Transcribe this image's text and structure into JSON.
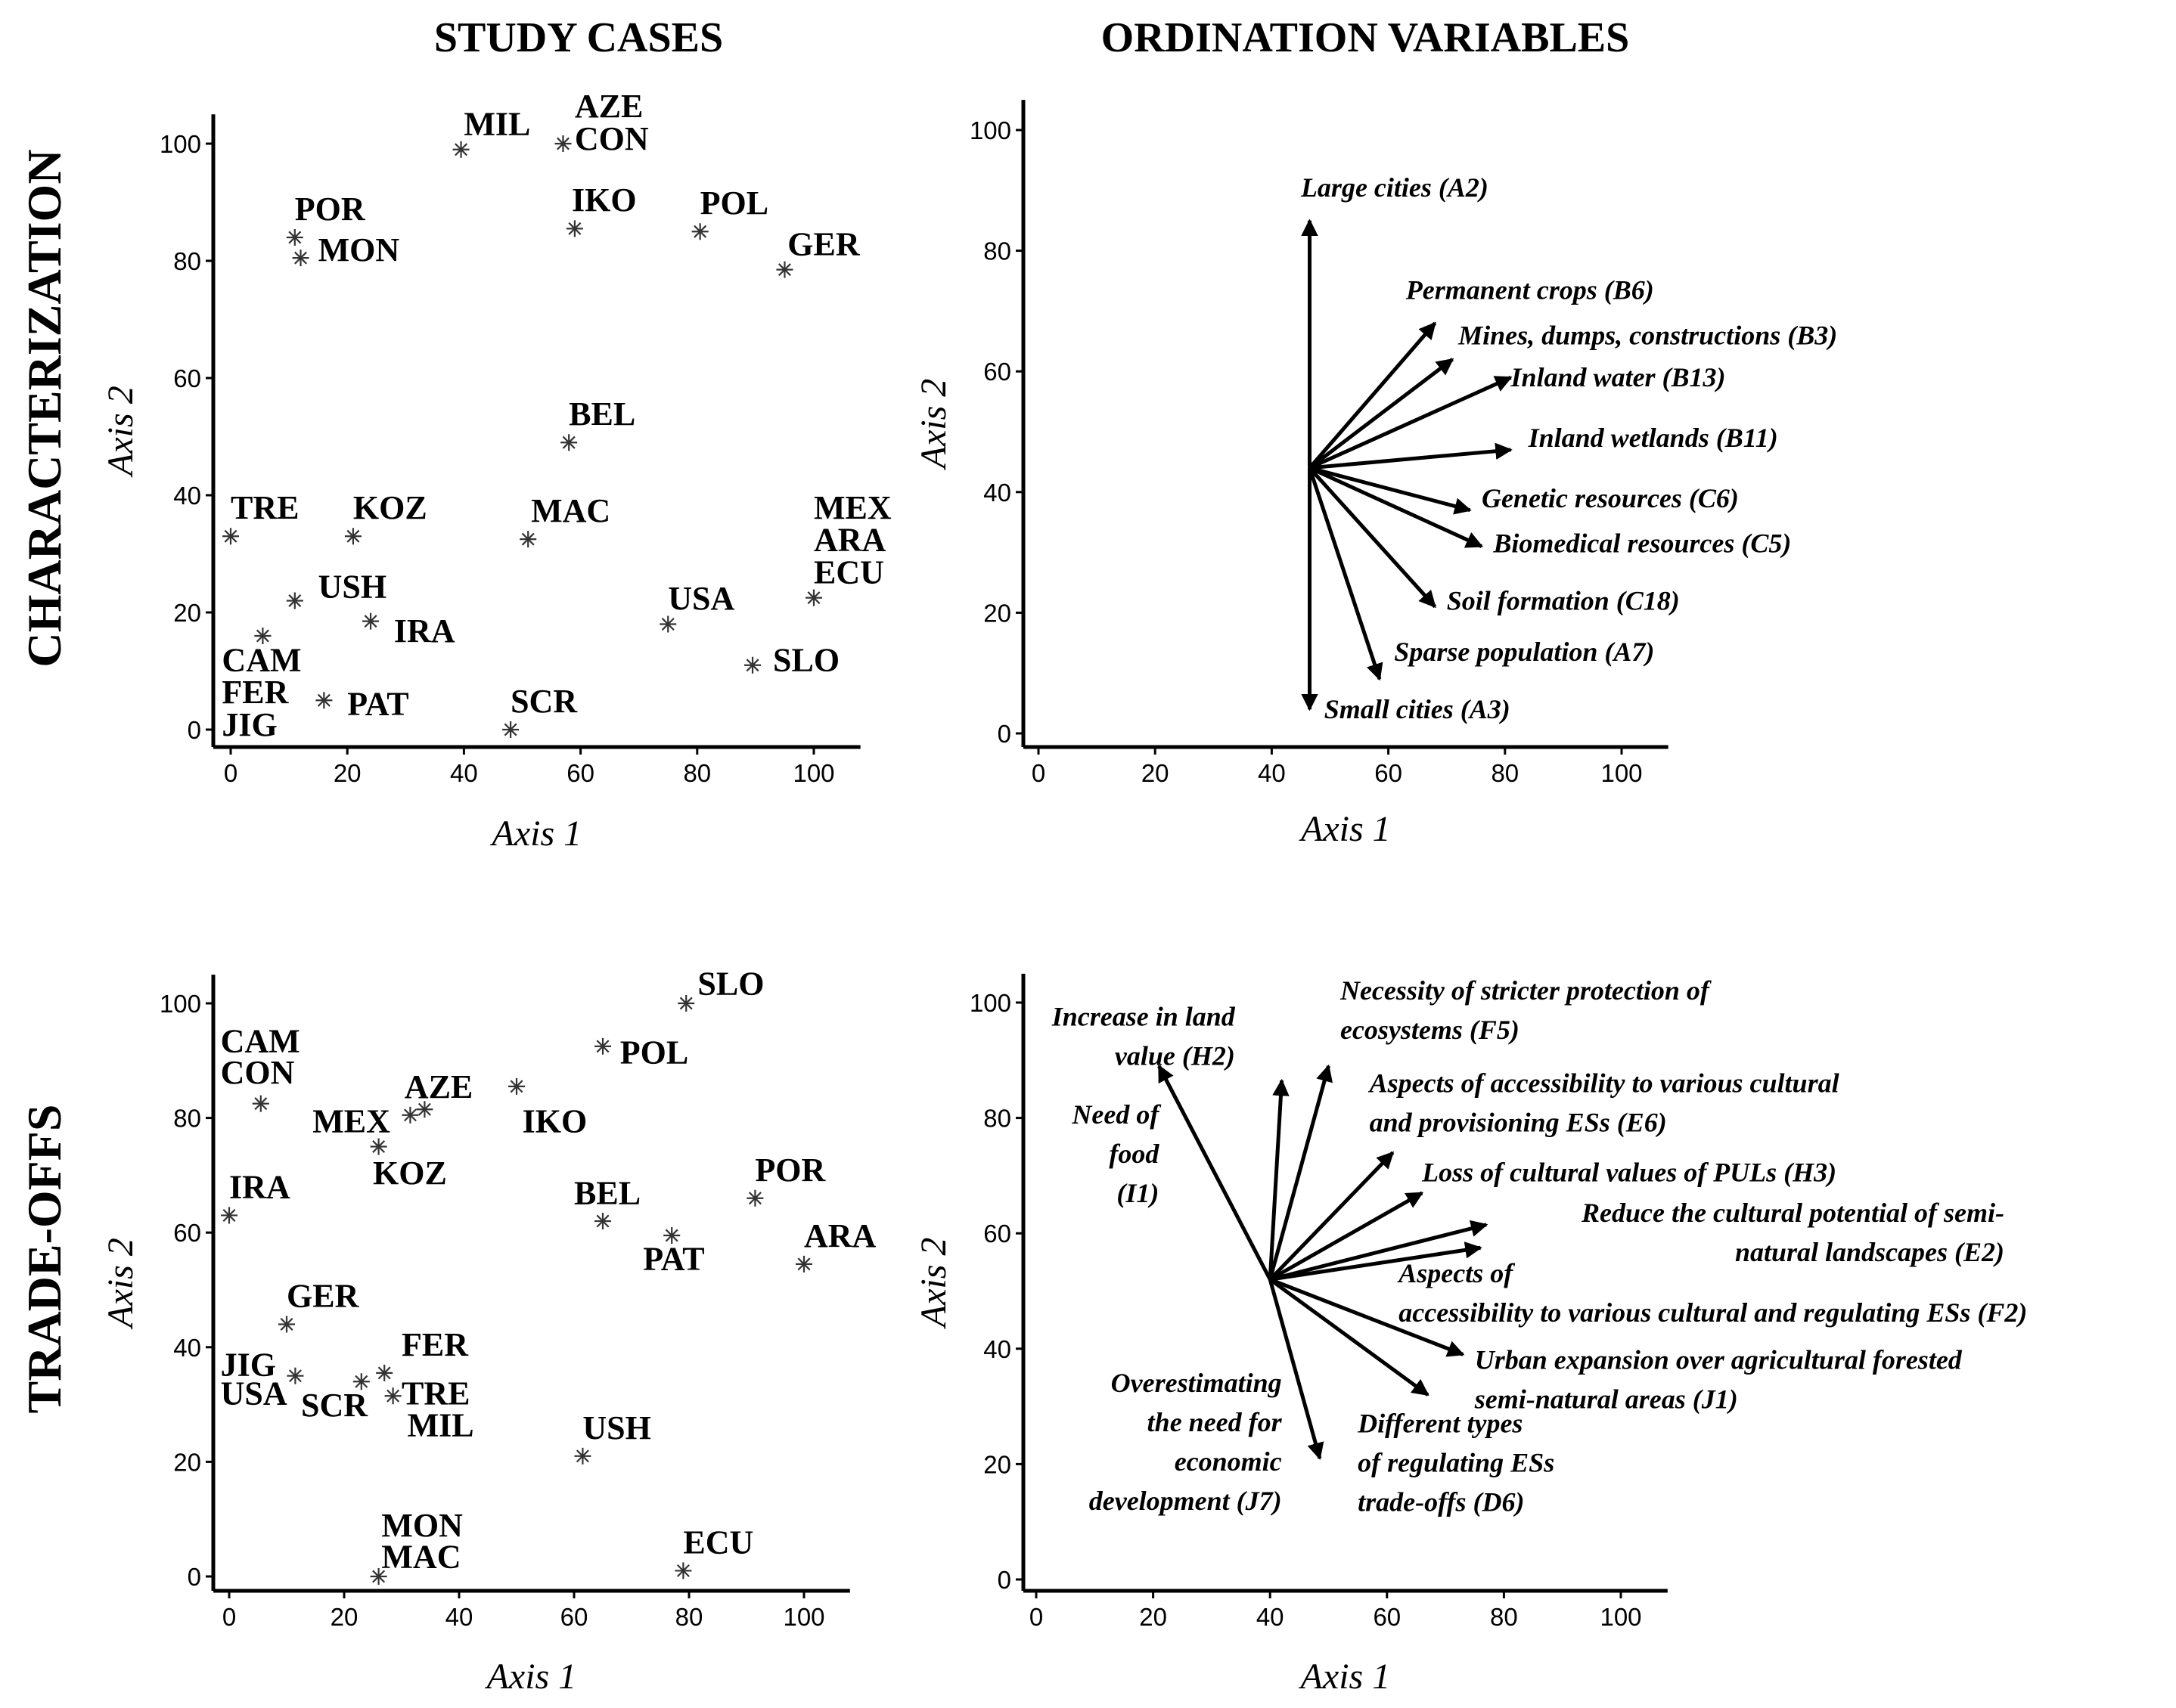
{
  "column_titles": [
    "STUDY CASES",
    "ORDINATION VARIABLES"
  ],
  "row_titles": [
    "CHARACTERIZATION",
    "TRADE-OFFS"
  ],
  "chart_data": [
    {
      "type": "scatter",
      "id": "char_cases",
      "row": "CHARACTERIZATION",
      "column": "STUDY CASES",
      "xlabel": "Axis 1",
      "ylabel": "Axis 2",
      "xlim": [
        -2,
        108
      ],
      "ylim": [
        -2,
        105
      ],
      "xticks": [
        0,
        20,
        40,
        60,
        80,
        100
      ],
      "yticks": [
        0,
        20,
        40,
        60,
        80,
        100
      ],
      "points": [
        {
          "x": 39.5,
          "y": 99,
          "marker": true
        },
        {
          "x": 57,
          "y": 100,
          "marker": true
        },
        {
          "x": 59,
          "y": 85.5,
          "marker": true
        },
        {
          "x": 80.5,
          "y": 85,
          "marker": true
        },
        {
          "x": 11,
          "y": 84,
          "marker": true
        },
        {
          "x": 12,
          "y": 80.5,
          "marker": true
        },
        {
          "x": 95,
          "y": 78.5,
          "marker": true
        },
        {
          "x": 58,
          "y": 49,
          "marker": true
        },
        {
          "x": 0,
          "y": 33,
          "marker": true
        },
        {
          "x": 21,
          "y": 33,
          "marker": true
        },
        {
          "x": 51,
          "y": 32.5,
          "marker": true
        },
        {
          "x": 100,
          "y": 22.5,
          "marker": true
        },
        {
          "x": 11,
          "y": 22,
          "marker": true
        },
        {
          "x": 24,
          "y": 18.5,
          "marker": true
        },
        {
          "x": 75,
          "y": 18,
          "marker": true
        },
        {
          "x": 5.5,
          "y": 16,
          "marker": true
        },
        {
          "x": 89.5,
          "y": 11,
          "marker": true
        },
        {
          "x": 16,
          "y": 5,
          "marker": true
        },
        {
          "x": 48,
          "y": 0,
          "marker": true
        }
      ],
      "labels": [
        {
          "text": "MIL",
          "x": 40,
          "y": 101.5
        },
        {
          "text": "AZE",
          "x": 59,
          "y": 104.5
        },
        {
          "text": "CON",
          "x": 59,
          "y": 99
        },
        {
          "text": "IKO",
          "x": 58.5,
          "y": 88.5
        },
        {
          "text": "POL",
          "x": 80.5,
          "y": 88
        },
        {
          "text": "POR",
          "x": 11,
          "y": 87
        },
        {
          "text": "MON",
          "x": 15,
          "y": 80
        },
        {
          "text": "GER",
          "x": 95.5,
          "y": 81
        },
        {
          "text": "BEL",
          "x": 58,
          "y": 52
        },
        {
          "text": "TRE",
          "x": 0,
          "y": 36
        },
        {
          "text": "KOZ",
          "x": 21,
          "y": 36
        },
        {
          "text": "MAC",
          "x": 51.5,
          "y": 35.5
        },
        {
          "text": "MEX",
          "x": 100,
          "y": 36
        },
        {
          "text": "ARA",
          "x": 100,
          "y": 30.5
        },
        {
          "text": "ECU",
          "x": 100,
          "y": 25
        },
        {
          "text": "USH",
          "x": 15,
          "y": 22.5
        },
        {
          "text": "IRA",
          "x": 28,
          "y": 15
        },
        {
          "text": "USA",
          "x": 75,
          "y": 20.5
        },
        {
          "text": "CAM",
          "x": -1.5,
          "y": 10
        },
        {
          "text": "SLO",
          "x": 93,
          "y": 10
        },
        {
          "text": "FER",
          "x": -1.5,
          "y": 4.5
        },
        {
          "text": "PAT",
          "x": 20,
          "y": 2.5
        },
        {
          "text": "SCR",
          "x": 48,
          "y": 3
        },
        {
          "text": "JIG",
          "x": -1.5,
          "y": -1
        }
      ]
    },
    {
      "type": "biplot",
      "id": "char_vars",
      "row": "CHARACTERIZATION",
      "column": "ORDINATION VARIABLES",
      "xlabel": "Axis 1",
      "ylabel": "Axis 2",
      "xlim": [
        -2,
        108
      ],
      "ylim": [
        -2,
        105
      ],
      "xticks": [
        0,
        20,
        40,
        60,
        80,
        100
      ],
      "yticks": [
        0,
        20,
        40,
        60,
        80,
        100
      ],
      "origin": [
        46.5,
        44
      ],
      "vectors": [
        {
          "to": [
            46.5,
            85
          ],
          "label": "Large cities (A2)",
          "lx": 45,
          "ly": 89
        },
        {
          "to": [
            68,
            68
          ],
          "label": "Permanent crops (B6)",
          "lx": 63,
          "ly": 72
        },
        {
          "to": [
            71,
            62
          ],
          "label": "Mines, dumps, constructions (B3)",
          "lx": 72,
          "ly": 64.5
        },
        {
          "to": [
            81,
            59
          ],
          "label": "Inland water (B13)",
          "lx": 81,
          "ly": 57.5
        },
        {
          "to": [
            81,
            47
          ],
          "label": "Inland wetlands (B11)",
          "lx": 84,
          "ly": 47.5
        },
        {
          "to": [
            74,
            37
          ],
          "label": "Genetic resources (C6)",
          "lx": 76,
          "ly": 37.5
        },
        {
          "to": [
            76,
            31
          ],
          "label": "Biomedical resources (C5)",
          "lx": 78,
          "ly": 30
        },
        {
          "to": [
            68,
            21
          ],
          "label": "Soil formation (C18)",
          "lx": 70,
          "ly": 20.5
        },
        {
          "to": [
            58.5,
            9
          ],
          "label": "Sparse population (A7)",
          "lx": 61,
          "ly": 12
        },
        {
          "to": [
            46.5,
            4
          ],
          "label": "Small cities (A3)",
          "lx": 49,
          "ly": 2.5
        }
      ]
    },
    {
      "type": "scatter",
      "id": "trade_cases",
      "row": "TRADE-OFFS",
      "column": "STUDY CASES",
      "xlabel": "Axis 1",
      "ylabel": "Axis 2",
      "xlim": [
        -2,
        108
      ],
      "ylim": [
        -2,
        105
      ],
      "xticks": [
        0,
        20,
        40,
        60,
        80,
        100
      ],
      "yticks": [
        0,
        20,
        40,
        60,
        80,
        100
      ],
      "points": [
        {
          "x": 79.5,
          "y": 100,
          "marker": true
        },
        {
          "x": 65,
          "y": 92.5,
          "marker": true
        },
        {
          "x": 50,
          "y": 85.5,
          "marker": true
        },
        {
          "x": 5.5,
          "y": 82.5,
          "marker": true
        },
        {
          "x": 31.5,
          "y": 80.5,
          "marker": true
        },
        {
          "x": 34,
          "y": 81.5,
          "marker": true
        },
        {
          "x": 26,
          "y": 75,
          "marker": true
        },
        {
          "x": 91.5,
          "y": 66,
          "marker": true
        },
        {
          "x": 0,
          "y": 63,
          "marker": true
        },
        {
          "x": 65,
          "y": 62,
          "marker": true
        },
        {
          "x": 77,
          "y": 59.5,
          "marker": true
        },
        {
          "x": 100,
          "y": 54.5,
          "marker": true
        },
        {
          "x": 10,
          "y": 44,
          "marker": true
        },
        {
          "x": 27,
          "y": 35.5,
          "marker": true
        },
        {
          "x": 11.5,
          "y": 35,
          "marker": true
        },
        {
          "x": 23,
          "y": 34,
          "marker": true
        },
        {
          "x": 28.5,
          "y": 31.5,
          "marker": true
        },
        {
          "x": 61.5,
          "y": 21,
          "marker": true
        },
        {
          "x": 79,
          "y": 1,
          "marker": true
        },
        {
          "x": 26,
          "y": 0,
          "marker": true
        }
      ],
      "labels": [
        {
          "text": "SLO",
          "x": 81.5,
          "y": 101.5
        },
        {
          "text": "POL",
          "x": 68,
          "y": 89.5
        },
        {
          "text": "CAM",
          "x": -1.5,
          "y": 91.5
        },
        {
          "text": "CON",
          "x": -1.5,
          "y": 86
        },
        {
          "text": "AZE",
          "x": 30.5,
          "y": 83.5
        },
        {
          "text": "MEX",
          "x": 14.5,
          "y": 77.5
        },
        {
          "text": "IKO",
          "x": 51,
          "y": 77.5
        },
        {
          "text": "KOZ",
          "x": 25,
          "y": 68.5
        },
        {
          "text": "POR",
          "x": 91.5,
          "y": 69
        },
        {
          "text": "IRA",
          "x": 0,
          "y": 66
        },
        {
          "text": "BEL",
          "x": 60,
          "y": 65
        },
        {
          "text": "ARA",
          "x": 100,
          "y": 57.5
        },
        {
          "text": "PAT",
          "x": 72,
          "y": 53.5
        },
        {
          "text": "GER",
          "x": 10,
          "y": 47
        },
        {
          "text": "FER",
          "x": 30,
          "y": 38.5
        },
        {
          "text": "JIG",
          "x": -1.5,
          "y": 35
        },
        {
          "text": "USA",
          "x": -1.5,
          "y": 30
        },
        {
          "text": "SCR",
          "x": 12.5,
          "y": 28
        },
        {
          "text": "TRE",
          "x": 30,
          "y": 30
        },
        {
          "text": "MIL",
          "x": 31,
          "y": 24.5
        },
        {
          "text": "USH",
          "x": 61.5,
          "y": 24
        },
        {
          "text": "MON",
          "x": 26.5,
          "y": 7
        },
        {
          "text": "MAC",
          "x": 26.5,
          "y": 1.5
        },
        {
          "text": "ECU",
          "x": 79,
          "y": 4
        }
      ]
    },
    {
      "type": "biplot",
      "id": "trade_vars",
      "row": "TRADE-OFFS",
      "column": "ORDINATION VARIABLES",
      "xlabel": "Axis 1",
      "ylabel": "Axis 2",
      "xlim": [
        -2,
        108
      ],
      "ylim": [
        -2,
        105
      ],
      "xticks": [
        0,
        20,
        40,
        60,
        80,
        100
      ],
      "yticks": [
        0,
        20,
        40,
        60,
        80,
        100
      ],
      "origin": [
        40,
        52
      ],
      "vectors": [
        {
          "to": [
            21,
            89
          ],
          "lines": []
        },
        {
          "to": [
            42,
            86.5
          ],
          "lines": []
        },
        {
          "to": [
            50,
            89
          ],
          "lines": []
        },
        {
          "to": [
            61,
            74
          ],
          "lines": []
        },
        {
          "to": [
            66,
            67
          ],
          "lines": []
        },
        {
          "to": [
            77,
            61.5
          ],
          "lines": []
        },
        {
          "to": [
            76,
            57.5
          ],
          "lines": []
        },
        {
          "to": [
            73,
            39
          ],
          "lines": []
        },
        {
          "to": [
            67,
            32
          ],
          "lines": []
        },
        {
          "to": [
            48.5,
            21
          ],
          "lines": []
        }
      ],
      "labels": [
        {
          "lines": [
            "Increase in land",
            "value (H2)"
          ],
          "lx": 34,
          "ly": 96,
          "align": "end"
        },
        {
          "lines": [
            "Necessity of stricter protection of",
            "ecosystems (F5)"
          ],
          "lx": 52,
          "ly": 100.5,
          "align": "start"
        },
        {
          "lines": [
            "Aspects of accessibility to various cultural",
            "and provisioning ESs (E6)"
          ],
          "lx": 57,
          "ly": 84.5,
          "align": "start"
        },
        {
          "lines": [
            "Need of",
            "food",
            "(I1)"
          ],
          "lx": 21,
          "ly": 79,
          "align": "end"
        },
        {
          "lines": [
            "Loss of cultural values of PULs (H3)"
          ],
          "lx": 66,
          "ly": 69,
          "align": "start"
        },
        {
          "lines": [
            "Reduce the cultural potential of semi-",
            "natural landscapes (E2)"
          ],
          "lx": 165,
          "ly": 62,
          "align": "end",
          "ox": 78
        },
        {
          "lines": [
            "Aspects of",
            "accessibility to various cultural and regulating ESs (F2)"
          ],
          "lx": 62,
          "ly": 51.5,
          "align": "start"
        },
        {
          "lines": [
            "Urban expansion over agricultural forested",
            "semi-natural areas (J1)"
          ],
          "lx": 75,
          "ly": 36.5,
          "align": "start"
        },
        {
          "lines": [
            "Overestimating",
            "the need for",
            "economic",
            "development (J7)"
          ],
          "lx": 42,
          "ly": 32.5,
          "align": "end"
        },
        {
          "lines": [
            "Different types",
            "of regulating ESs",
            "trade-offs (D6)"
          ],
          "lx": 55,
          "ly": 25.5,
          "align": "start"
        }
      ]
    }
  ]
}
